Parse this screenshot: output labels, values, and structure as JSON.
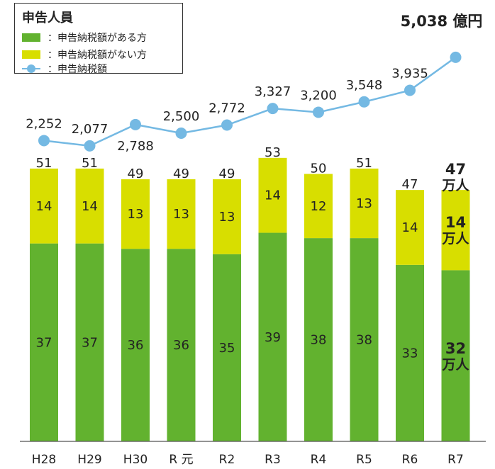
{
  "chart_data": {
    "type": "bar",
    "title": "",
    "categories": [
      "H28",
      "H29",
      "H30",
      "R 元",
      "R2",
      "R3",
      "R4",
      "R5",
      "R6",
      "R7"
    ],
    "series": [
      {
        "name": "：申告納税額がある方",
        "color": "#62b22f",
        "values": [
          37,
          37,
          36,
          36,
          35,
          39,
          38,
          38,
          33,
          32
        ]
      },
      {
        "name": "：申告納税額がない方",
        "color": "#d8de00",
        "values": [
          14,
          14,
          13,
          13,
          13,
          14,
          12,
          13,
          14,
          14
        ]
      },
      {
        "name": "：申告納税額",
        "color": "#74b9e3",
        "type": "line",
        "values": [
          2252,
          2077,
          2788,
          2500,
          2772,
          3327,
          3200,
          3548,
          3935,
          5038
        ]
      }
    ],
    "totals": [
      51,
      51,
      49,
      49,
      49,
      53,
      50,
      51,
      47,
      47
    ],
    "line_labels": [
      "2,252",
      "2,077",
      "2,788",
      "2,500",
      "2,772",
      "3,327",
      "3,200",
      "3,548",
      "3,935",
      "5,038 億円"
    ],
    "highlight_unit": "万人",
    "legend_title": "申告人員",
    "legend_position": "top-left",
    "grid": false
  }
}
